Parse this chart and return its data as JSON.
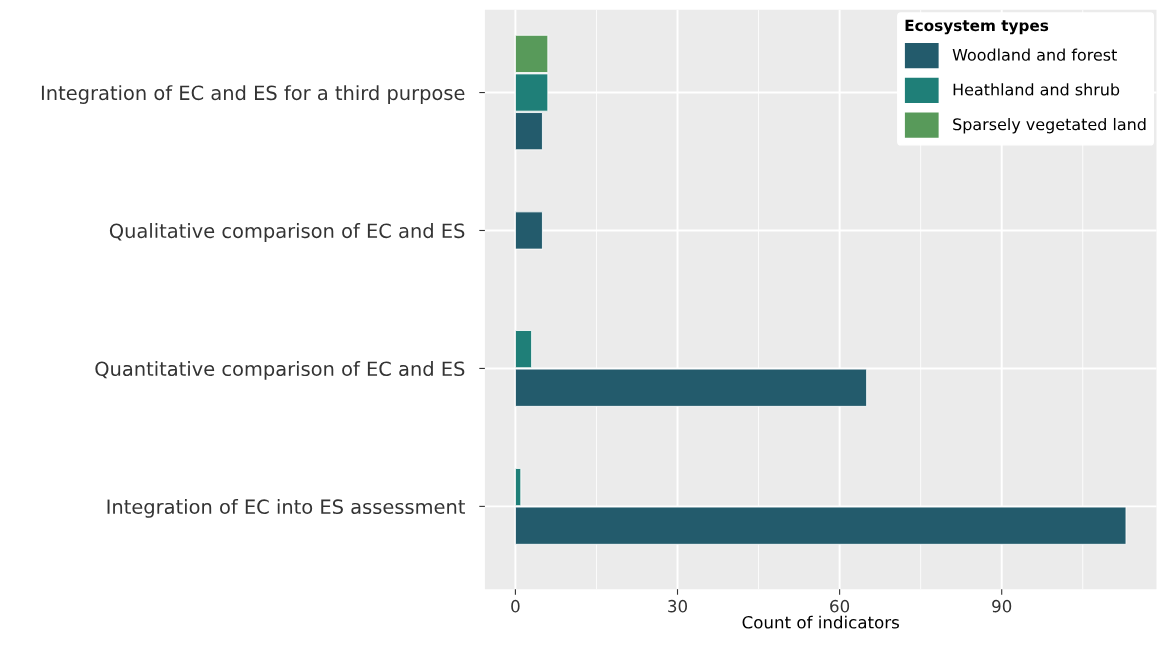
{
  "chart_data": {
    "type": "bar",
    "orientation": "horizontal",
    "categories": [
      "Integration of EC and ES for a third purpose",
      "Qualitative comparison of EC and ES",
      "Quantitative comparison of EC and ES",
      "Integration of EC into ES assessment"
    ],
    "series": [
      {
        "name": "Woodland and forest",
        "color": "#235b6c",
        "values": [
          5,
          5,
          65,
          113
        ]
      },
      {
        "name": "Heathland and shrub",
        "color": "#1f7f78",
        "values": [
          6,
          null,
          3,
          1
        ]
      },
      {
        "name": "Sparsely vegetated land",
        "color": "#589a5a",
        "values": [
          6,
          null,
          null,
          null
        ]
      }
    ],
    "xlabel": "Count of indicators",
    "legend_title": "Ecosystem types",
    "xlim": [
      -5.65,
      118.65
    ],
    "xticks": [
      0,
      30,
      60,
      90
    ],
    "grid": true,
    "legend": "top right"
  }
}
